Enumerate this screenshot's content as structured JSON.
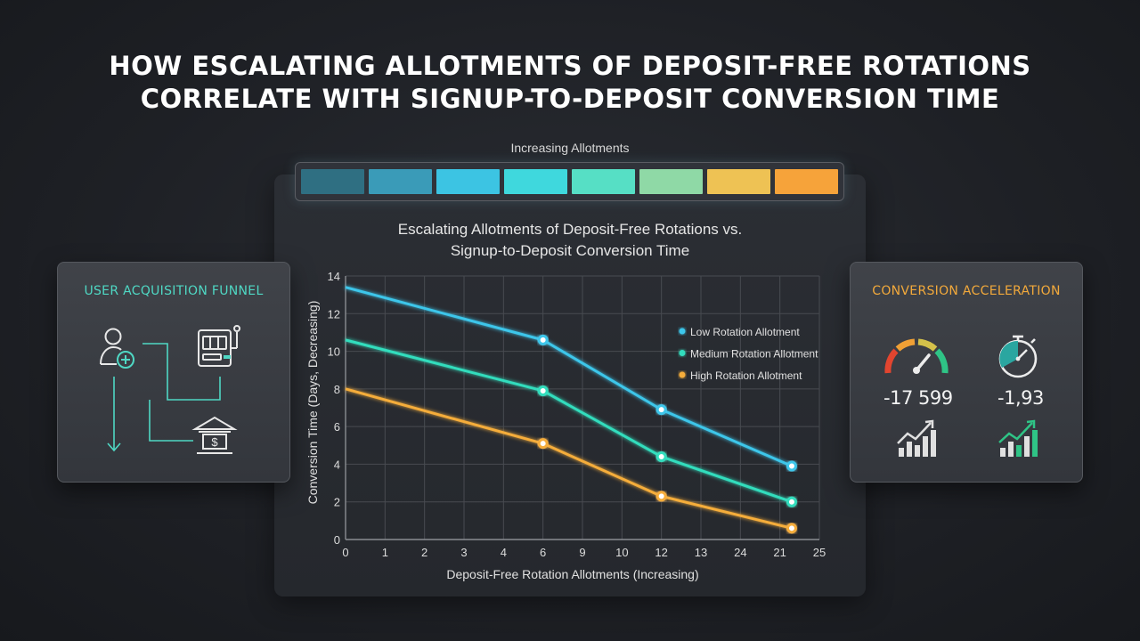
{
  "header": {
    "title_line1": "HOW ESCALATING ALLOTMENTS OF DEPOSIT-FREE ROTATIONS",
    "title_line2": "CORRELATE WITH SIGNUP-TO-DEPOSIT CONVERSION TIME"
  },
  "scale": {
    "label": "Increasing Allotments",
    "colors": [
      "#2f6f82",
      "#3a9bb8",
      "#3cc4e3",
      "#3fd8dd",
      "#56dfc5",
      "#8fd9a6",
      "#eec254",
      "#f6a33a"
    ]
  },
  "left_panel": {
    "title": "USER ACQUISITION FUNNEL",
    "icons": [
      "user-add-icon",
      "slot-machine-icon",
      "bank-icon",
      "arrow-down-icon"
    ]
  },
  "right_panel": {
    "title": "CONVERSION ACCELERATION",
    "metric1": {
      "value": "-17 599",
      "icon": "gauge-icon",
      "trend_icon": "bar-trend-icon"
    },
    "metric2": {
      "value": "-1,93",
      "icon": "stopwatch-icon",
      "trend_icon": "bar-trend-green-icon"
    }
  },
  "chart_data": {
    "type": "line",
    "title_line1": "Escalating Allotments of Deposit-Free Rotations vs.",
    "title_line2": "Signup-to-Deposit Conversion Time",
    "xlabel": "Deposit-Free Rotation Allotments (Increasing)",
    "ylabel": "Conversion Time (Days, Decreasing)",
    "x_tick_labels": [
      "0",
      "1",
      "2",
      "3",
      "4",
      "6",
      "9",
      "10",
      "12",
      "13",
      "24",
      "21",
      "25"
    ],
    "y_ticks": [
      0,
      2,
      4,
      6,
      8,
      10,
      12,
      14
    ],
    "ylim": [
      0,
      14
    ],
    "grid": true,
    "legend_position": "right",
    "series": [
      {
        "name": "Low Rotation Allotment",
        "color": "#3cc6ea",
        "points": [
          [
            0,
            13.4
          ],
          [
            5,
            10.6
          ],
          [
            8,
            6.9
          ],
          [
            11.3,
            3.9
          ]
        ],
        "markers": [
          1,
          2,
          3
        ]
      },
      {
        "name": "Medium Rotation Allotment",
        "color": "#33ddbd",
        "points": [
          [
            0,
            10.6
          ],
          [
            5,
            7.9
          ],
          [
            8,
            4.4
          ],
          [
            11.3,
            2.0
          ]
        ],
        "markers": [
          1,
          2,
          3
        ]
      },
      {
        "name": "High Rotation Allotment",
        "color": "#f5ad3a",
        "points": [
          [
            0,
            8.0
          ],
          [
            5,
            5.1
          ],
          [
            8,
            2.3
          ],
          [
            11.3,
            0.6
          ]
        ],
        "markers": [
          1,
          2,
          3
        ]
      }
    ]
  }
}
